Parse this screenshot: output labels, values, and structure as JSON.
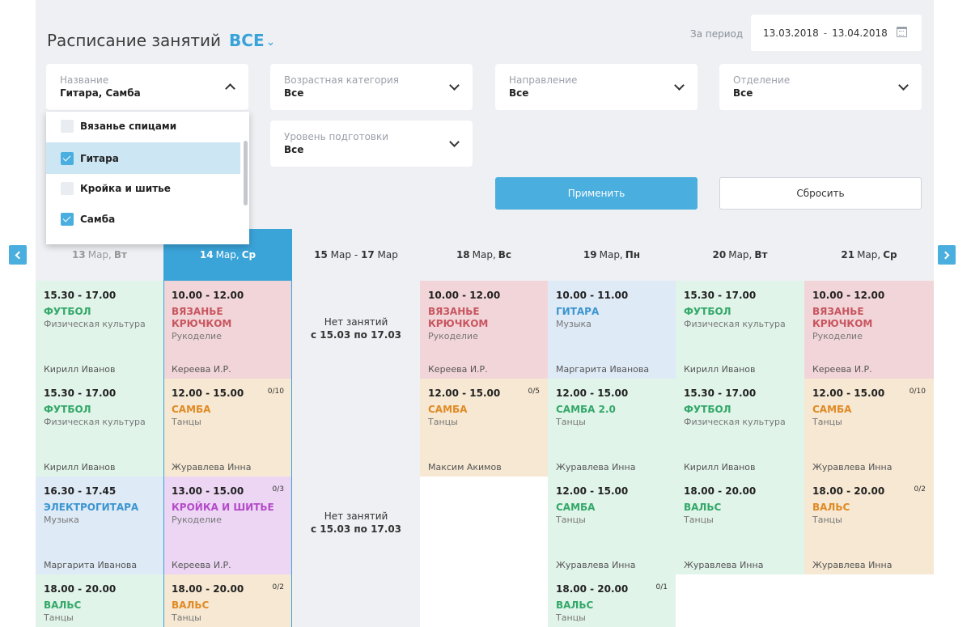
{
  "header": {
    "title": "Расписание занятий",
    "title_filter": "ВСЕ",
    "period_label": "За период",
    "period_from": "13.03.2018",
    "period_sep": "-",
    "period_to": "13.04.2018"
  },
  "filters": {
    "name": {
      "label": "Название",
      "value": "Гитара, Самба"
    },
    "age": {
      "label": "Возрастная категория",
      "value": "Все"
    },
    "direction": {
      "label": "Направление",
      "value": "Все"
    },
    "department": {
      "label": "Отделение",
      "value": "Все"
    },
    "level": {
      "label": "Уровень подготовки",
      "value": "Все"
    }
  },
  "dropdown": {
    "options": [
      {
        "label": "Вязанье спицами",
        "checked": false
      },
      {
        "label": "Гитара",
        "checked": true
      },
      {
        "label": "Кройка и шитье",
        "checked": false
      },
      {
        "label": "Самба",
        "checked": true
      }
    ]
  },
  "buttons": {
    "apply": "Применить",
    "reset": "Сбросить"
  },
  "days": [
    {
      "num": "13",
      "month": "Мар,",
      "dow": "Вт"
    },
    {
      "num": "14",
      "month": "Мар,",
      "dow": "Ср"
    },
    {
      "num": "18",
      "month": "Мар,",
      "dow": "Вс"
    },
    {
      "num": "19",
      "month": "Мар,",
      "dow": "Пн"
    },
    {
      "num": "20",
      "month": "Мар,",
      "dow": "Вт"
    },
    {
      "num": "21",
      "month": "Мар,",
      "dow": "Ср"
    }
  ],
  "merged": {
    "from_num": "15",
    "from_month": "Мар",
    "dash": "-",
    "to_num": "17",
    "to_month": "Мар",
    "no_lessons": "Нет занятий",
    "no_lessons_range": "с 15.03 по 17.03"
  },
  "cells": {
    "c0r0": {
      "time": "15.30 - 17.00",
      "name": "Футбол",
      "cat": "Физическая культура",
      "teacher": "Кирилл Иванов"
    },
    "c0r1": {
      "time": "15.30 - 17.00",
      "name": "Футбол",
      "cat": "Физическая культура",
      "teacher": "Кирилл Иванов"
    },
    "c0r2": {
      "time": "16.30 - 17.45",
      "name": "Электрогитара",
      "cat": "Музыка",
      "teacher": "Маргарита Иванова"
    },
    "c0r3": {
      "time": "18.00 - 20.00",
      "name": "Вальс",
      "cat": "Танцы",
      "teacher": ""
    },
    "c1r0": {
      "time": "10.00 - 12.00",
      "name": "Вязанье крючком",
      "cat": "Рукоделие",
      "teacher": "Кереева И.Р."
    },
    "c1r1": {
      "time": "12.00 - 15.00",
      "count": "0/10",
      "name": "Самба",
      "cat": "Танцы",
      "teacher": "Журавлева Инна"
    },
    "c1r2": {
      "time": "13.00 - 15.00",
      "count": "0/3",
      "name": "Кройка и шитье",
      "cat": "Рукоделие",
      "teacher": "Кереева И.Р."
    },
    "c1r3": {
      "time": "18.00 - 20.00",
      "count": "0/2",
      "name": "Вальс",
      "cat": "Танцы",
      "teacher": ""
    },
    "c2r0": {
      "time": "10.00 - 12.00",
      "name": "Вязанье крючком",
      "cat": "Рукоделие",
      "teacher": "Кереева И.Р."
    },
    "c2r1": {
      "time": "12.00 - 15.00",
      "count": "0/5",
      "name": "Самба",
      "cat": "Танцы",
      "teacher": "Максим Акимов"
    },
    "c3r0": {
      "time": "10.00 - 11.00",
      "name": "Гитара",
      "cat": "Музыка",
      "teacher": "Маргарита Иванова"
    },
    "c3r1": {
      "time": "12.00 - 15.00",
      "name": "Самба 2.0",
      "cat": "Танцы",
      "teacher": "Журавлева Инна"
    },
    "c3r2": {
      "time": "12.00 - 15.00",
      "name": "Самба",
      "cat": "Танцы",
      "teacher": "Журавлева Инна"
    },
    "c3r3": {
      "time": "18.00 - 20.00",
      "count": "0/1",
      "name": "Вальс",
      "cat": "Танцы",
      "teacher": ""
    },
    "c4r0": {
      "time": "15.30 - 17.00",
      "name": "Футбол",
      "cat": "Физическая культура",
      "teacher": "Кирилл Иванов"
    },
    "c4r1": {
      "time": "15.30 - 17.00",
      "name": "Футбол",
      "cat": "Физическая культура",
      "teacher": "Кирилл Иванов"
    },
    "c4r2": {
      "time": "18.00 - 20.00",
      "name": "Вальс",
      "cat": "Танцы",
      "teacher": "Журавлева Инна"
    },
    "c5r0": {
      "time": "10.00 - 12.00",
      "name": "Вязанье крючком",
      "cat": "Рукоделие",
      "teacher": "Кереева И.Р."
    },
    "c5r1": {
      "time": "12.00 - 15.00",
      "count": "0/10",
      "name": "Самба",
      "cat": "Танцы",
      "teacher": "Журавлева Инна"
    },
    "c5r2": {
      "time": "18.00 - 20.00",
      "count": "0/2",
      "name": "Вальс",
      "cat": "Танцы",
      "teacher": "Журавлева Инна"
    }
  },
  "colors": {
    "accent": "#3aa3d8",
    "panel": "#eef0f4"
  }
}
